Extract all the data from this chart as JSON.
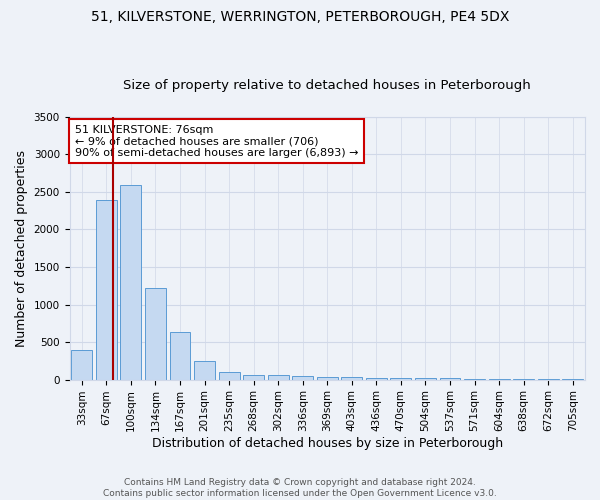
{
  "title": "51, KILVERSTONE, WERRINGTON, PETERBOROUGH, PE4 5DX",
  "subtitle": "Size of property relative to detached houses in Peterborough",
  "xlabel": "Distribution of detached houses by size in Peterborough",
  "ylabel": "Number of detached properties",
  "footer": "Contains HM Land Registry data © Crown copyright and database right 2024.\nContains public sector information licensed under the Open Government Licence v3.0.",
  "categories": [
    "33sqm",
    "67sqm",
    "100sqm",
    "134sqm",
    "167sqm",
    "201sqm",
    "235sqm",
    "268sqm",
    "302sqm",
    "336sqm",
    "369sqm",
    "403sqm",
    "436sqm",
    "470sqm",
    "504sqm",
    "537sqm",
    "571sqm",
    "604sqm",
    "638sqm",
    "672sqm",
    "705sqm"
  ],
  "values": [
    390,
    2390,
    2590,
    1225,
    640,
    250,
    100,
    62,
    58,
    52,
    35,
    28,
    22,
    20,
    18,
    15,
    12,
    10,
    8,
    6,
    4
  ],
  "bar_color": "#c5d9f1",
  "bar_edge_color": "#5b9bd5",
  "grid_color": "#d0d8e8",
  "background_color": "#eef2f8",
  "vline_color": "#aa0000",
  "annotation_text": "51 KILVERSTONE: 76sqm\n← 9% of detached houses are smaller (706)\n90% of semi-detached houses are larger (6,893) →",
  "annotation_box_color": "#ffffff",
  "annotation_border_color": "#cc0000",
  "ylim": [
    0,
    3500
  ],
  "yticks": [
    0,
    500,
    1000,
    1500,
    2000,
    2500,
    3000,
    3500
  ],
  "title_fontsize": 10,
  "subtitle_fontsize": 9.5,
  "axis_label_fontsize": 9,
  "tick_fontsize": 7.5,
  "annotation_fontsize": 8,
  "footer_fontsize": 6.5
}
